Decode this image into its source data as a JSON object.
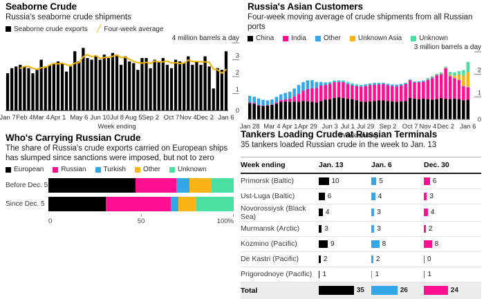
{
  "palette": {
    "black": "#000000",
    "pink": "#ff1090",
    "blue": "#34a7e8",
    "yellow": "#fcb315",
    "green": "#4be0a2",
    "gold_line": "#f2b200",
    "axis_line_dark": "#1a1a1a",
    "axis_line_gray": "#9a9a9a",
    "total_row_bg": "#ececec"
  },
  "chart_data": [
    {
      "id": "seaborne",
      "type": "bar",
      "title": "Seaborne Crude",
      "subtitle": "Russia's seaborne crude shipments",
      "legend": [
        {
          "label": "Seaborne crude exports",
          "color": "black",
          "marker": "square"
        },
        {
          "label": "Four-week average",
          "color": "gold_line",
          "marker": "slash"
        }
      ],
      "unit_note": "4 million barrels a day",
      "xlabel": "Week ending",
      "ylim": [
        0,
        4
      ],
      "yticks": [
        0,
        1,
        2,
        3
      ],
      "x_tick_labels": [
        "Jan 7",
        "Feb 4",
        "Mar 4",
        "Apr 1",
        "May 6",
        "Jun 10",
        "Jul 8",
        "Aug 5",
        "Sep 2",
        "Oct 7",
        "Nov 4",
        "Dec 2",
        "Jan 6"
      ],
      "x_tick_positions": [
        0,
        4,
        8,
        12,
        17,
        22,
        26,
        30,
        34,
        39,
        43,
        47,
        52
      ],
      "bar_color": "black",
      "overlay_line": {
        "name": "Four-week average",
        "window": 4,
        "color": "gold_line"
      },
      "values": [
        2.2,
        2.5,
        2.6,
        2.7,
        2.6,
        2.5,
        2.2,
        2.4,
        3.0,
        2.6,
        2.7,
        2.8,
        2.9,
        2.8,
        2.3,
        2.6,
        3.5,
        2.9,
        3.7,
        3.1,
        3.0,
        3.2,
        3.0,
        3.3,
        3.1,
        3.4,
        3.3,
        2.7,
        3.2,
        2.9,
        2.8,
        2.4,
        3.1,
        3.1,
        2.5,
        3.0,
        2.9,
        3.1,
        2.7,
        2.5,
        3.0,
        2.9,
        2.8,
        3.2,
        2.7,
        2.9,
        2.7,
        3.2,
        2.6,
        1.3,
        2.5,
        2.4,
        3.5
      ]
    },
    {
      "id": "asian-customers",
      "type": "stacked-bar",
      "title": "Russia's Asian Customers",
      "subtitle": "Four-week moving average of crude shipments from all Russian ports",
      "unit_note": "3 million barrels a day",
      "xlabel": "Week ending",
      "ylim": [
        0,
        3
      ],
      "yticks": [
        0,
        1,
        2
      ],
      "x_tick_labels": [
        "Jan 28",
        "Mar 4",
        "Apr 1",
        "Apr 29",
        "Jun 3",
        "Jul 1",
        "Jul 29",
        "Sep 2",
        "Oct 7",
        "Nov 4",
        "Dec 2",
        "Jan 6"
      ],
      "x_tick_positions": [
        0,
        5,
        9,
        13,
        18,
        22,
        26,
        31,
        36,
        40,
        44,
        49
      ],
      "series": [
        {
          "name": "China",
          "color": "black",
          "values": [
            0.72,
            0.7,
            0.62,
            0.6,
            0.62,
            0.65,
            0.7,
            0.78,
            0.8,
            0.78,
            0.8,
            0.78,
            0.82,
            0.8,
            0.78,
            0.75,
            0.82,
            0.88,
            0.9,
            0.95,
            0.98,
            0.95,
            0.92,
            0.9,
            0.85,
            0.8,
            0.78,
            0.8,
            0.82,
            0.85,
            0.85,
            0.82,
            0.8,
            0.78,
            0.8,
            0.82,
            0.95,
            0.92,
            0.9,
            0.92,
            0.9,
            0.88,
            0.9,
            0.95,
            0.92,
            0.9,
            0.92,
            0.9,
            0.85,
            0.88
          ]
        },
        {
          "name": "India",
          "color": "pink",
          "values": [
            0.03,
            0.03,
            0.03,
            0.02,
            0.02,
            0.02,
            0.05,
            0.08,
            0.1,
            0.15,
            0.22,
            0.35,
            0.45,
            0.55,
            0.6,
            0.65,
            0.68,
            0.65,
            0.68,
            0.7,
            0.68,
            0.7,
            0.65,
            0.6,
            0.62,
            0.65,
            0.7,
            0.72,
            0.72,
            0.7,
            0.72,
            0.7,
            0.68,
            0.68,
            0.7,
            0.75,
            0.78,
            0.72,
            0.75,
            0.75,
            0.85,
            0.95,
            1.05,
            1.05,
            1.35,
            1.02,
            0.9,
            0.85,
            0.62,
            0.55
          ]
        },
        {
          "name": "Other",
          "color": "blue",
          "values": [
            0.3,
            0.28,
            0.28,
            0.25,
            0.2,
            0.22,
            0.25,
            0.25,
            0.28,
            0.3,
            0.35,
            0.4,
            0.38,
            0.38,
            0.35,
            0.25,
            0.15,
            0.1,
            0.06,
            0.05,
            0.05,
            0.05,
            0.05,
            0.06,
            0.05,
            0.05,
            0.06,
            0.06,
            0.07,
            0.06,
            0.05,
            0.06,
            0.07,
            0.08,
            0.07,
            0.05,
            0.04,
            0.04,
            0.04,
            0.05,
            0.05,
            0.05,
            0.04,
            0.04,
            0.02,
            0.02,
            0.02,
            0.02,
            0.02,
            0.02
          ]
        },
        {
          "name": "Unknown Asia",
          "color": "yellow",
          "values": [
            0,
            0,
            0,
            0,
            0,
            0,
            0,
            0,
            0,
            0,
            0,
            0,
            0,
            0,
            0,
            0,
            0,
            0,
            0,
            0,
            0,
            0,
            0,
            0,
            0,
            0,
            0,
            0,
            0,
            0,
            0,
            0,
            0,
            0,
            0,
            0,
            0,
            0,
            0,
            0,
            0.02,
            0.02,
            0.02,
            0.02,
            0.02,
            0.05,
            0.1,
            0.22,
            0.45,
            0.65
          ]
        },
        {
          "name": "Unknown",
          "color": "green",
          "values": [
            0,
            0,
            0,
            0,
            0,
            0,
            0,
            0,
            0,
            0,
            0,
            0,
            0.01,
            0.01,
            0.02,
            0.02,
            0.02,
            0.02,
            0.03,
            0.03,
            0.03,
            0.03,
            0.05,
            0.05,
            0.04,
            0.03,
            0.03,
            0.02,
            0.02,
            0.02,
            0.01,
            0,
            0,
            0,
            0,
            0,
            0,
            0,
            0,
            0.01,
            0.02,
            0.02,
            0.02,
            0.03,
            0.03,
            0.12,
            0.15,
            0.15,
            0.25,
            0.45
          ]
        }
      ]
    },
    {
      "id": "carriers",
      "type": "stacked-bar-horizontal",
      "title": "Who's Carrying Russian Crude",
      "subtitle": "The share of Russia's crude exports carried on European ships has slumped since sanctions were imposed, but not to zero",
      "categories": [
        "Before Dec. 5",
        "Since Dec. 5"
      ],
      "x_axis_labels": [
        "0",
        "50",
        "100%"
      ],
      "xlim": [
        0,
        100
      ],
      "series": [
        {
          "name": "European",
          "color": "black",
          "values": [
            47,
            31
          ]
        },
        {
          "name": "Russian",
          "color": "pink",
          "values": [
            22,
            35
          ]
        },
        {
          "name": "Turkish",
          "color": "blue",
          "values": [
            7,
            4
          ]
        },
        {
          "name": "Other",
          "color": "yellow",
          "values": [
            12,
            10
          ]
        },
        {
          "name": "Unknown",
          "color": "green",
          "values": [
            12,
            20
          ]
        }
      ]
    },
    {
      "id": "tankers-table",
      "type": "table",
      "title": "Tankers Loading Crude at Russian Terminals",
      "subtitle": "35 tankers loaded Russian crude in the week to Jan. 13",
      "columns": [
        "Week ending",
        "Jan. 13",
        "Jan. 6",
        "Dec. 30"
      ],
      "column_colors": [
        "black",
        "blue",
        "pink"
      ],
      "rows": [
        {
          "label": "Primorsk (Baltic)",
          "values": [
            10,
            5,
            6
          ]
        },
        {
          "label": "Ust-Luga (Baltic)",
          "values": [
            6,
            4,
            3
          ]
        },
        {
          "label": "Novorossiysk (Black Sea)",
          "values": [
            4,
            3,
            4
          ]
        },
        {
          "label": "Murmansk (Arctic)",
          "values": [
            3,
            3,
            2
          ]
        },
        {
          "label": "Kozmino (Pacific)",
          "values": [
            9,
            8,
            8
          ]
        },
        {
          "label": "De Kastri (Pacific)",
          "values": [
            2,
            2,
            0
          ]
        },
        {
          "label": "Prigorodnoye (Pacific)",
          "values": [
            1,
            1,
            1
          ]
        }
      ],
      "total": {
        "label": "Total",
        "values": [
          35,
          26,
          24
        ]
      }
    }
  ]
}
